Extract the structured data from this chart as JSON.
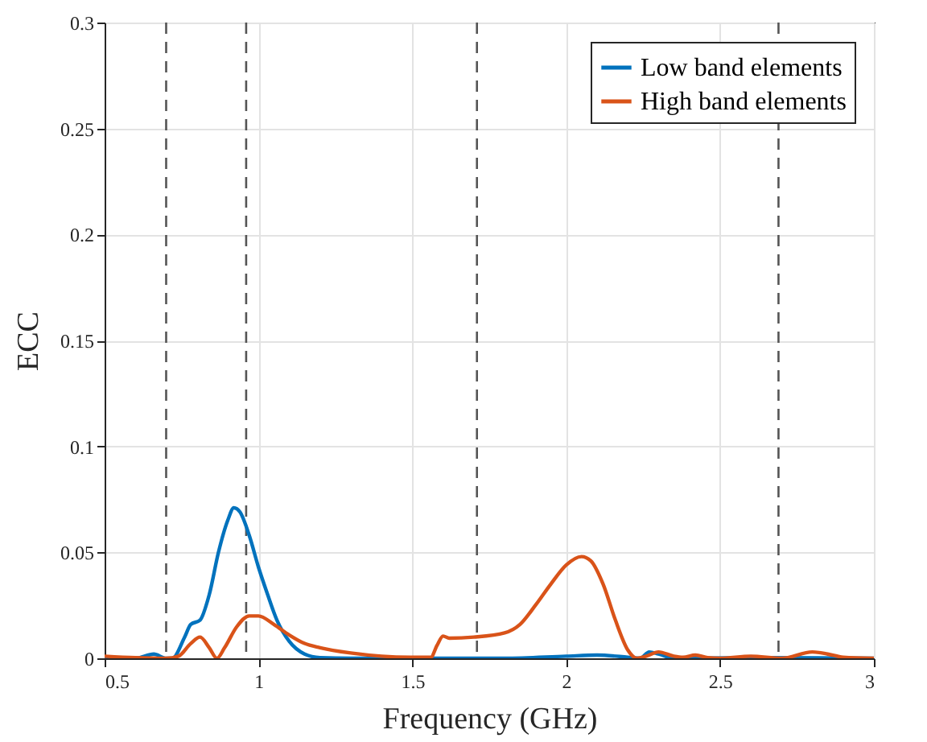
{
  "chart_data": {
    "type": "line",
    "xlabel": "Frequency (GHz)",
    "ylabel": "ECC",
    "xlim": [
      0.5,
      3
    ],
    "xticks": [
      0.5,
      1,
      1.5,
      2,
      2.5,
      3
    ],
    "ylim": [
      0,
      0.3
    ],
    "yticks": [
      0,
      0.05,
      0.1,
      0.15,
      0.2,
      0.25,
      0.3
    ],
    "grid": true,
    "legend": "top right",
    "line_style": "solid",
    "series": [
      {
        "name": "Low band elements",
        "color": "#0072bd",
        "x": [
          0.5,
          0.6,
          0.66,
          0.7,
          0.72,
          0.76,
          0.78,
          0.81,
          0.84,
          0.87,
          0.9,
          0.92,
          0.94,
          0.97,
          1.0,
          1.03,
          1.06,
          1.1,
          1.15,
          1.2,
          1.3,
          1.6,
          1.8,
          2.0,
          2.1,
          2.2,
          2.24,
          2.27,
          2.3,
          2.35,
          2.6,
          3
        ],
        "values": [
          0.0005,
          0,
          0.002,
          0,
          0,
          0.01,
          0.016,
          0.018,
          0.03,
          0.05,
          0.065,
          0.071,
          0.069,
          0.058,
          0.043,
          0.03,
          0.018,
          0.008,
          0.002,
          0.0003,
          0,
          0,
          0,
          0.001,
          0.0015,
          0.0005,
          0,
          0.003,
          0.002,
          0,
          0.0003,
          0
        ]
      },
      {
        "name": "High band elements",
        "color": "#d95319",
        "x": [
          0.5,
          0.6,
          0.7,
          0.74,
          0.78,
          0.81,
          0.84,
          0.865,
          0.89,
          0.93,
          0.97,
          1.0,
          1.05,
          1.1,
          1.15,
          1.2,
          1.3,
          1.4,
          1.5,
          1.56,
          1.58,
          1.6,
          1.62,
          1.7,
          1.8,
          1.85,
          1.9,
          1.95,
          2.0,
          2.05,
          2.08,
          2.12,
          2.16,
          2.2,
          2.23,
          2.26,
          2.3,
          2.35,
          2.38,
          2.42,
          2.46,
          2.5,
          2.6,
          2.7,
          2.8,
          2.85,
          2.9,
          3
        ],
        "values": [
          0.001,
          0.0003,
          0,
          0.001,
          0.007,
          0.01,
          0.005,
          0,
          0.005,
          0.015,
          0.02,
          0.02,
          0.016,
          0.011,
          0.007,
          0.005,
          0.0025,
          0.001,
          0.0005,
          0.0005,
          0.006,
          0.0105,
          0.0095,
          0.01,
          0.012,
          0.016,
          0.025,
          0.035,
          0.044,
          0.048,
          0.046,
          0.035,
          0.018,
          0.004,
          0,
          0.001,
          0.003,
          0.001,
          0.0005,
          0.0015,
          0.0003,
          0,
          0.001,
          0,
          0.003,
          0.002,
          0.0005,
          0
        ]
      }
    ],
    "ref_lines": [
      {
        "axis": "x",
        "value": 0.7,
        "color": "#555555",
        "line_style": "dashed"
      },
      {
        "axis": "x",
        "value": 0.96,
        "color": "#555555",
        "line_style": "dashed"
      },
      {
        "axis": "x",
        "value": 1.71,
        "color": "#555555",
        "line_style": "dashed"
      },
      {
        "axis": "x",
        "value": 2.69,
        "color": "#555555",
        "line_style": "dashed"
      }
    ]
  }
}
